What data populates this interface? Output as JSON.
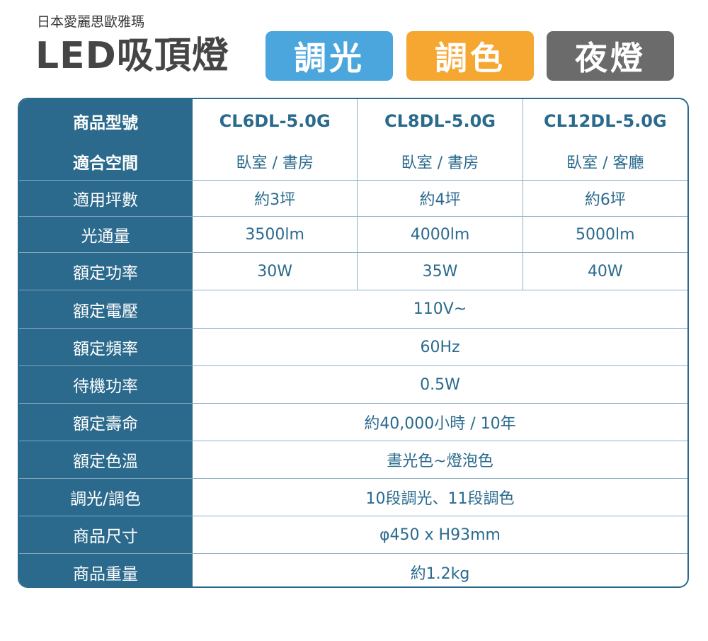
{
  "brand": "日本愛麗思歐雅瑪",
  "title": "LED吸頂燈",
  "badges": [
    {
      "label": "調光",
      "color": "#4aa6dd"
    },
    {
      "label": "調色",
      "color": "#f5a731"
    },
    {
      "label": "夜燈",
      "color": "#6b6b6b"
    }
  ],
  "table": {
    "header": {
      "label": "商品型號",
      "models": [
        "CL6DL-5.0G",
        "CL8DL-5.0G",
        "CL12DL-5.0G"
      ]
    },
    "rows": [
      {
        "label": "適合空間",
        "values": [
          "臥室 / 書房",
          "臥室 / 書房",
          "臥室 / 客廳"
        ]
      },
      {
        "label": "適用坪數",
        "values": [
          "約3坪",
          "約4坪",
          "約6坪"
        ]
      },
      {
        "label": "光通量",
        "values": [
          "3500lm",
          "4000lm",
          "5000lm"
        ]
      },
      {
        "label": "額定功率",
        "values": [
          "30W",
          "35W",
          "40W"
        ]
      },
      {
        "label": "額定電壓",
        "value": "110V~"
      },
      {
        "label": "額定頻率",
        "value": "60Hz"
      },
      {
        "label": "待機功率",
        "value": "0.5W"
      },
      {
        "label": "額定壽命",
        "value": "約40,000小時 / 10年"
      },
      {
        "label": "額定色溫",
        "value": "晝光色~燈泡色"
      },
      {
        "label": "調光/調色",
        "value": "10段調光、11段調色"
      },
      {
        "label": "商品尺寸",
        "value": "φ450 x H93mm"
      },
      {
        "label": "商品重量",
        "value": "約1.2kg"
      }
    ]
  }
}
